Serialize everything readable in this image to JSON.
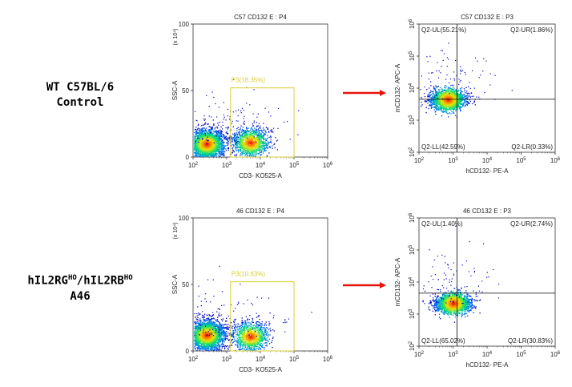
{
  "rows": [
    {
      "label_line1": "WT C57BL/6",
      "label_line2": "Control"
    },
    {
      "label_line1": "hIL2RG",
      "label_sup1": "HO",
      "label_mid": "/hIL2RB",
      "label_sup2": "HO",
      "label_line2": "A46"
    }
  ],
  "colors": {
    "arrow": "#e8140c",
    "gate": "#d8cf35",
    "quadrant": "#000000",
    "axis": "#333333"
  },
  "chart_data": [
    {
      "type": "scatter",
      "subtype": "flow-cytometry-density",
      "title": "C57 CD132 E : P4",
      "xlabel": "CD3- KO525-A",
      "ylabel": "SSC-A",
      "y_scale_label": "(x 10⁴)",
      "x_scale": "log",
      "xlim": [
        100,
        1000000
      ],
      "x_ticks": [
        {
          "value": 100,
          "base": "10",
          "exp": "2"
        },
        {
          "value": 1000,
          "base": "10",
          "exp": "3"
        },
        {
          "value": 10000,
          "base": "10",
          "exp": "4"
        },
        {
          "value": 100000,
          "base": "10",
          "exp": "5"
        },
        {
          "value": 1000000,
          "base": "10",
          "exp": "6"
        }
      ],
      "y_scale": "linear",
      "ylim": [
        0,
        100
      ],
      "y_ticks": [
        "0",
        "50",
        "100"
      ],
      "gate": {
        "label": "P3(18.35%)",
        "x": [
          1300,
          100000
        ],
        "y": [
          0,
          52
        ]
      },
      "populations": [
        {
          "x": 250,
          "y": 10,
          "n": 2600
        },
        {
          "x": 5000,
          "y": 11,
          "n": 1300
        }
      ]
    },
    {
      "type": "scatter",
      "subtype": "flow-cytometry-quadrant",
      "title": "C57 CD132 E : P3",
      "xlabel": "hCD132- PE-A",
      "ylabel": "mCD132- APC-A",
      "x_scale": "log",
      "xlim": [
        100,
        1000000
      ],
      "y_scale": "log",
      "ylim": [
        100,
        1000000
      ],
      "x_ticks": [
        {
          "value": 100,
          "base": "10",
          "exp": "2"
        },
        {
          "value": 1000,
          "base": "10",
          "exp": "3"
        },
        {
          "value": 10000,
          "base": "10",
          "exp": "4"
        },
        {
          "value": 100000,
          "base": "10",
          "exp": "5"
        },
        {
          "value": 1000000,
          "base": "10",
          "exp": "6"
        }
      ],
      "y_ticks": [
        {
          "value": 100,
          "base": "10",
          "exp": "2"
        },
        {
          "value": 1000,
          "base": "10",
          "exp": "3"
        },
        {
          "value": 10000,
          "base": "10",
          "exp": "4"
        },
        {
          "value": 100000,
          "base": "10",
          "exp": "5"
        },
        {
          "value": 1000000,
          "base": "10",
          "exp": "6"
        }
      ],
      "quadrant_threshold": {
        "x": 1300,
        "y": 4500
      },
      "quadrants": {
        "UL": "Q2-UL(55.21%)",
        "UR": "Q2-UR(1.86%)",
        "LL": "Q2-LL(42.59%)",
        "LR": "Q2-LR(0.33%)"
      },
      "populations": [
        {
          "x": 700,
          "y": 4500,
          "n": 2000
        }
      ]
    },
    {
      "type": "scatter",
      "subtype": "flow-cytometry-density",
      "title": "46 CD132 E : P4",
      "xlabel": "CD3- KO525-A",
      "ylabel": "SSC-A",
      "y_scale_label": "(x 10⁴)",
      "x_scale": "log",
      "xlim": [
        100,
        1000000
      ],
      "x_ticks": [
        {
          "value": 100,
          "base": "10",
          "exp": "2"
        },
        {
          "value": 1000,
          "base": "10",
          "exp": "3"
        },
        {
          "value": 10000,
          "base": "10",
          "exp": "4"
        },
        {
          "value": 100000,
          "base": "10",
          "exp": "5"
        },
        {
          "value": 1000000,
          "base": "10",
          "exp": "6"
        }
      ],
      "y_scale": "linear",
      "ylim": [
        0,
        100
      ],
      "y_ticks": [
        "0",
        "50",
        "100"
      ],
      "gate": {
        "label": "P3(10.63%)",
        "x": [
          1300,
          100000
        ],
        "y": [
          0,
          52
        ]
      },
      "populations": [
        {
          "x": 250,
          "y": 12,
          "n": 2800
        },
        {
          "x": 5000,
          "y": 11,
          "n": 1100
        }
      ]
    },
    {
      "type": "scatter",
      "subtype": "flow-cytometry-quadrant",
      "title": "46 CD132 E : P3",
      "xlabel": "hCD132- PE-A",
      "ylabel": "mCD132- APC-A",
      "x_scale": "log",
      "xlim": [
        100,
        1000000
      ],
      "y_scale": "log",
      "ylim": [
        100,
        1000000
      ],
      "x_ticks": [
        {
          "value": 100,
          "base": "10",
          "exp": "2"
        },
        {
          "value": 1000,
          "base": "10",
          "exp": "3"
        },
        {
          "value": 10000,
          "base": "10",
          "exp": "4"
        },
        {
          "value": 100000,
          "base": "10",
          "exp": "5"
        },
        {
          "value": 1000000,
          "base": "10",
          "exp": "6"
        }
      ],
      "y_ticks": [
        {
          "value": 100,
          "base": "10",
          "exp": "2"
        },
        {
          "value": 1000,
          "base": "10",
          "exp": "3"
        },
        {
          "value": 10000,
          "base": "10",
          "exp": "4"
        },
        {
          "value": 100000,
          "base": "10",
          "exp": "5"
        },
        {
          "value": 1000000,
          "base": "10",
          "exp": "6"
        }
      ],
      "quadrant_threshold": {
        "x": 1300,
        "y": 4500
      },
      "quadrants": {
        "UL": "Q2-UL(1.40%)",
        "UR": "Q2-UR(2.74%)",
        "LL": "Q2-LL(65.02%)",
        "LR": "Q2-LR(30.83%)"
      },
      "populations": [
        {
          "x": 1000,
          "y": 2200,
          "n": 2200
        }
      ]
    }
  ]
}
